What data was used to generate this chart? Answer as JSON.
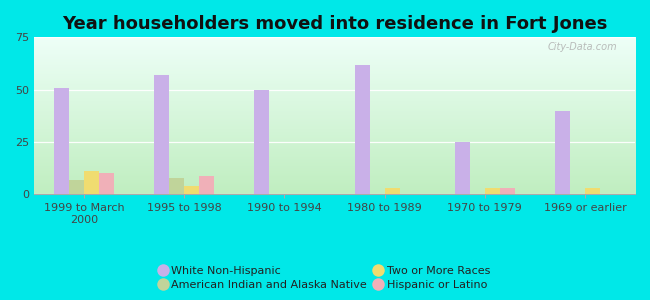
{
  "title": "Year householders moved into residence in Fort Jones",
  "categories": [
    "1999 to March\n2000",
    "1995 to 1998",
    "1990 to 1994",
    "1980 to 1989",
    "1970 to 1979",
    "1969 or earlier"
  ],
  "series": {
    "White Non-Hispanic": [
      51,
      57,
      50,
      62,
      25,
      40
    ],
    "American Indian and Alaska Native": [
      7,
      8,
      0,
      0,
      0,
      0
    ],
    "Two or More Races": [
      11,
      4,
      0,
      3,
      3,
      3
    ],
    "Hispanic or Latino": [
      10,
      9,
      0,
      0,
      3,
      0
    ]
  },
  "colors": {
    "White Non-Hispanic": "#c9b0e8",
    "American Indian and Alaska Native": "#c0d49a",
    "Two or More Races": "#f0dc70",
    "Hispanic or Latino": "#f0b0b8"
  },
  "ylim": [
    0,
    75
  ],
  "yticks": [
    0,
    25,
    50,
    75
  ],
  "bar_width": 0.15,
  "grad_bottom": "#c0eec0",
  "grad_top": "#eefff8",
  "title_fontsize": 13,
  "tick_fontsize": 8,
  "legend_fontsize": 8,
  "watermark": "City-Data.com",
  "outer_bg": "#00e8e8",
  "legend_order": [
    "White Non-Hispanic",
    "American Indian and Alaska Native",
    "Two or More Races",
    "Hispanic or Latino"
  ]
}
